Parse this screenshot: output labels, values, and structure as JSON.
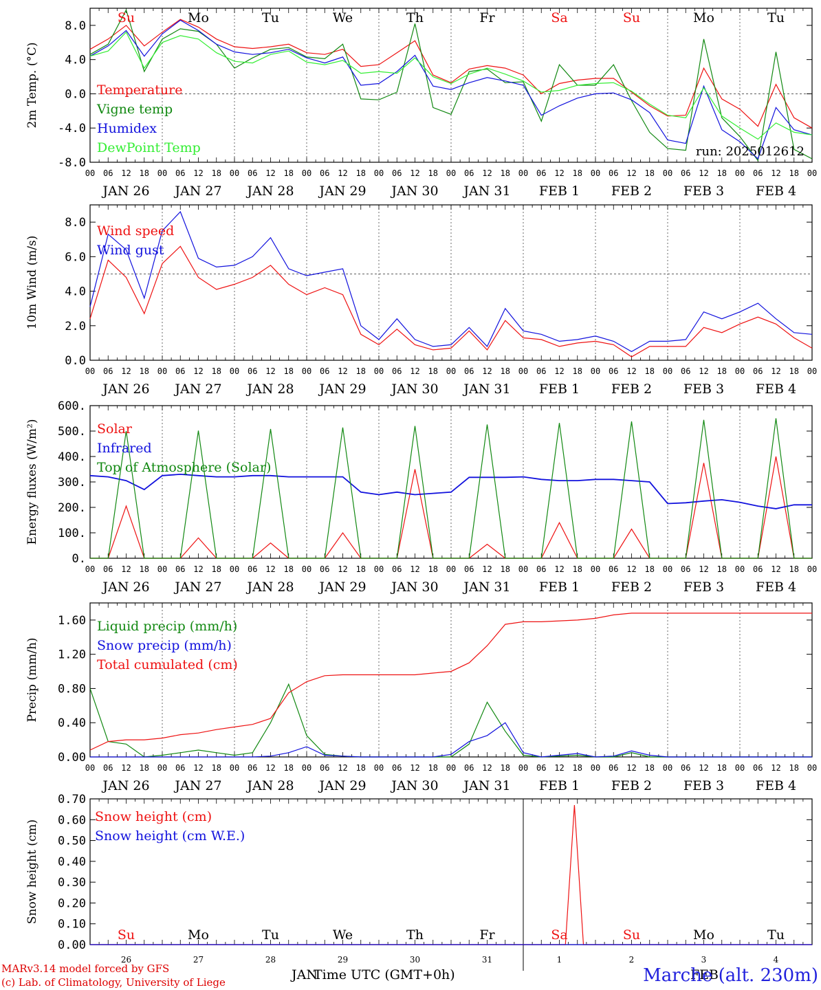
{
  "colors": {
    "red": "#ee1111",
    "darkgreen": "#118811",
    "blue": "#1111dd",
    "lightgreen": "#33ee33",
    "black": "#000000"
  },
  "days": [
    "JAN 26",
    "JAN 27",
    "JAN 28",
    "JAN 29",
    "JAN 30",
    "JAN 31",
    "FEB  1",
    "FEB  2",
    "FEB  3",
    "FEB  4"
  ],
  "dow": [
    {
      "label": "Su",
      "color": "red"
    },
    {
      "label": "Mo",
      "color": "black"
    },
    {
      "label": "Tu",
      "color": "black"
    },
    {
      "label": "We",
      "color": "black"
    },
    {
      "label": "Th",
      "color": "black"
    },
    {
      "label": "Fr",
      "color": "black"
    },
    {
      "label": "Sa",
      "color": "red"
    },
    {
      "label": "Su",
      "color": "red"
    },
    {
      "label": "Mo",
      "color": "black"
    },
    {
      "label": "Tu",
      "color": "black"
    }
  ],
  "hour_labels": [
    "00",
    "06",
    "12",
    "18"
  ],
  "final_hour_label": "00",
  "run_label": "run: 2025012612",
  "chart_data": [
    {
      "type": "line",
      "ylabel": "2m Temp. (°C)",
      "ylim": [
        -8,
        10
      ],
      "yticks": [
        -8,
        -4,
        0,
        4,
        8
      ],
      "yticklabels": [
        "-8.0",
        "-4.0",
        "0.0",
        "4.0",
        "8.0"
      ],
      "reference_line": 0,
      "x_hours": [
        0,
        6,
        12,
        18,
        24,
        30,
        36,
        42,
        48,
        54,
        60,
        66,
        72,
        78,
        84,
        90,
        96,
        102,
        108,
        114,
        120,
        126,
        132,
        138,
        144,
        150,
        156,
        162,
        168,
        174,
        180,
        186,
        192,
        198,
        204,
        210,
        216,
        222,
        228,
        234,
        240
      ],
      "series": [
        {
          "name": "Temperature",
          "color": "red",
          "values": [
            5.2,
            6.4,
            8.0,
            5.6,
            7.2,
            8.7,
            7.8,
            6.4,
            5.5,
            5.3,
            5.5,
            5.8,
            4.8,
            4.6,
            5.2,
            3.2,
            3.4,
            4.8,
            6.2,
            2.2,
            1.3,
            2.9,
            3.3,
            3.0,
            2.2,
            0.0,
            1.2,
            1.6,
            1.8,
            1.8,
            0.2,
            -1.4,
            -2.6,
            -2.5,
            3.0,
            -0.6,
            -1.8,
            -3.8,
            1.1,
            -2.8,
            -4.0
          ]
        },
        {
          "name": "Vigne temp",
          "color": "darkgreen",
          "values": [
            4.6,
            5.8,
            9.8,
            2.6,
            6.4,
            7.6,
            7.3,
            5.8,
            3.0,
            4.2,
            5.2,
            5.4,
            4.3,
            4.1,
            5.8,
            -0.6,
            -0.7,
            0.2,
            8.2,
            -1.6,
            -2.4,
            2.6,
            2.9,
            1.3,
            1.4,
            -3.2,
            3.4,
            1.0,
            1.0,
            3.4,
            -0.8,
            -4.5,
            -6.4,
            -6.6,
            6.4,
            -2.8,
            -5.0,
            -7.8,
            4.9,
            -6.5,
            -7.6
          ]
        },
        {
          "name": "Humidex",
          "color": "blue",
          "values": [
            4.4,
            5.6,
            7.4,
            4.4,
            7.0,
            8.6,
            7.4,
            5.8,
            4.9,
            4.6,
            4.8,
            5.2,
            4.2,
            3.6,
            4.3,
            1.0,
            1.2,
            2.6,
            4.5,
            0.9,
            0.5,
            1.3,
            1.9,
            1.5,
            1.0,
            -2.5,
            -1.4,
            -0.5,
            0.0,
            0.1,
            -0.7,
            -2.2,
            -5.4,
            -5.8,
            0.9,
            -4.2,
            -5.6,
            -7.6,
            -1.6,
            -4.2,
            -4.8
          ]
        },
        {
          "name": "DewPoint Temp",
          "color": "lightgreen",
          "values": [
            4.4,
            5.0,
            7.2,
            3.0,
            6.0,
            6.8,
            6.4,
            4.8,
            3.8,
            3.6,
            4.6,
            5.0,
            3.7,
            3.4,
            3.9,
            2.4,
            2.6,
            2.4,
            4.2,
            2.0,
            1.2,
            2.3,
            3.0,
            2.3,
            1.5,
            0.2,
            0.4,
            1.0,
            1.2,
            1.3,
            0.3,
            -1.2,
            -2.5,
            -2.8,
            0.7,
            -2.6,
            -4.0,
            -5.3,
            -3.4,
            -4.5,
            -4.8
          ]
        }
      ]
    },
    {
      "type": "line",
      "ylabel": "10m Wind (m/s)",
      "ylim": [
        0,
        9
      ],
      "yticks": [
        0,
        2,
        4,
        6,
        8
      ],
      "yticklabels": [
        "0.0",
        "2.0",
        "4.0",
        "6.0",
        "8.0"
      ],
      "reference_line": 5,
      "x_hours": [
        0,
        6,
        12,
        18,
        24,
        30,
        36,
        42,
        48,
        54,
        60,
        66,
        72,
        78,
        84,
        90,
        96,
        102,
        108,
        114,
        120,
        126,
        132,
        138,
        144,
        150,
        156,
        162,
        168,
        174,
        180,
        186,
        192,
        198,
        204,
        210,
        216,
        222,
        228,
        234,
        240
      ],
      "series": [
        {
          "name": "Wind speed",
          "color": "red",
          "values": [
            2.4,
            5.8,
            4.8,
            2.7,
            5.6,
            6.6,
            4.8,
            4.1,
            4.4,
            4.8,
            5.5,
            4.4,
            3.8,
            4.2,
            3.8,
            1.5,
            0.9,
            1.8,
            0.9,
            0.6,
            0.7,
            1.7,
            0.6,
            2.3,
            1.3,
            1.2,
            0.8,
            1.0,
            1.1,
            0.9,
            0.2,
            0.8,
            0.8,
            0.8,
            1.9,
            1.6,
            2.1,
            2.5,
            2.1,
            1.3,
            0.7
          ]
        },
        {
          "name": "Wind gust",
          "color": "blue",
          "values": [
            3.1,
            7.3,
            6.4,
            3.6,
            7.5,
            8.6,
            5.9,
            5.4,
            5.5,
            6.0,
            7.1,
            5.3,
            4.9,
            5.1,
            5.3,
            2.0,
            1.2,
            2.4,
            1.2,
            0.8,
            0.9,
            1.9,
            0.8,
            3.0,
            1.7,
            1.5,
            1.1,
            1.2,
            1.4,
            1.1,
            0.5,
            1.1,
            1.1,
            1.2,
            2.8,
            2.4,
            2.8,
            3.3,
            2.4,
            1.6,
            1.5
          ]
        }
      ]
    },
    {
      "type": "line",
      "ylabel": "Energy fluxes (W/m²)",
      "ylim": [
        0,
        600
      ],
      "yticks": [
        0,
        100,
        200,
        300,
        400,
        500,
        600
      ],
      "yticklabels": [
        "0.",
        "100.",
        "200.",
        "300.",
        "400.",
        "500.",
        "600."
      ],
      "x_hours": [
        0,
        6,
        12,
        18,
        24,
        30,
        36,
        42,
        48,
        54,
        60,
        66,
        72,
        78,
        84,
        90,
        96,
        102,
        108,
        114,
        120,
        126,
        132,
        138,
        144,
        150,
        156,
        162,
        168,
        174,
        180,
        186,
        192,
        198,
        204,
        210,
        216,
        222,
        228,
        234,
        240
      ],
      "series": [
        {
          "name": "Solar",
          "color": "red",
          "values": [
            0,
            0,
            205,
            0,
            0,
            0,
            80,
            0,
            0,
            0,
            60,
            0,
            0,
            0,
            100,
            0,
            0,
            0,
            350,
            0,
            0,
            0,
            55,
            0,
            0,
            0,
            140,
            0,
            0,
            0,
            115,
            0,
            0,
            0,
            375,
            0,
            0,
            0,
            400,
            0,
            0
          ]
        },
        {
          "name": "Infrared",
          "color": "blue",
          "values": [
            325,
            320,
            305,
            270,
            325,
            330,
            325,
            320,
            320,
            325,
            325,
            320,
            320,
            320,
            320,
            260,
            250,
            260,
            250,
            255,
            260,
            318,
            318,
            318,
            320,
            310,
            305,
            305,
            310,
            310,
            305,
            300,
            215,
            218,
            225,
            230,
            220,
            205,
            195,
            210,
            210
          ]
        },
        {
          "name": "Top of Atmosphere (Solar)",
          "color": "darkgreen",
          "values": [
            0,
            0,
            500,
            0,
            0,
            0,
            502,
            0,
            0,
            0,
            508,
            0,
            0,
            0,
            514,
            0,
            0,
            0,
            520,
            0,
            0,
            0,
            526,
            0,
            0,
            0,
            532,
            0,
            0,
            0,
            538,
            0,
            0,
            0,
            544,
            0,
            0,
            0,
            550,
            0,
            0
          ]
        }
      ]
    },
    {
      "type": "line",
      "ylabel": "Precip (mm/h)",
      "ylim": [
        0,
        1.8
      ],
      "yticks": [
        0,
        0.4,
        0.8,
        1.2,
        1.6
      ],
      "yticklabels": [
        "0.00",
        "0.40",
        "0.80",
        "1.20",
        "1.60"
      ],
      "x_hours": [
        0,
        6,
        12,
        18,
        24,
        30,
        36,
        42,
        48,
        54,
        60,
        66,
        72,
        78,
        84,
        90,
        96,
        102,
        108,
        114,
        120,
        126,
        132,
        138,
        144,
        150,
        156,
        162,
        168,
        174,
        180,
        186,
        192,
        198,
        204,
        210,
        216,
        222,
        228,
        234,
        240
      ],
      "series": [
        {
          "name": "Liquid precip (mm/h)",
          "color": "darkgreen",
          "values": [
            0.8,
            0.18,
            0.15,
            0.0,
            0.02,
            0.05,
            0.08,
            0.05,
            0.02,
            0.05,
            0.4,
            0.85,
            0.25,
            0.03,
            0.01,
            0.0,
            0.0,
            0.0,
            0.0,
            0.0,
            0.0,
            0.15,
            0.64,
            0.3,
            0.02,
            0.0,
            0.01,
            0.02,
            0.0,
            0.0,
            0.05,
            0.0,
            0.0,
            0.0,
            0.0,
            0.0,
            0.0,
            0.0,
            0.0,
            0.0,
            0.0
          ]
        },
        {
          "name": "Snow precip (mm/h)",
          "color": "blue",
          "values": [
            0.0,
            0.0,
            0.0,
            0.0,
            0.0,
            0.0,
            0.0,
            0.0,
            0.0,
            0.0,
            0.01,
            0.05,
            0.12,
            0.02,
            0.01,
            0.0,
            0.0,
            0.0,
            0.0,
            0.0,
            0.03,
            0.18,
            0.25,
            0.4,
            0.05,
            0.0,
            0.02,
            0.04,
            0.0,
            0.01,
            0.07,
            0.02,
            0.0,
            0.0,
            0.0,
            0.0,
            0.0,
            0.0,
            0.0,
            0.0,
            0.0
          ]
        },
        {
          "name": "Total cumulated (cm)",
          "color": "red",
          "values": [
            0.08,
            0.18,
            0.2,
            0.2,
            0.22,
            0.26,
            0.28,
            0.32,
            0.35,
            0.38,
            0.45,
            0.75,
            0.88,
            0.95,
            0.96,
            0.96,
            0.96,
            0.96,
            0.96,
            0.98,
            1.0,
            1.1,
            1.3,
            1.55,
            1.58,
            1.58,
            1.59,
            1.6,
            1.62,
            1.66,
            1.68,
            1.68,
            1.68,
            1.68,
            1.68,
            1.68,
            1.68,
            1.68,
            1.68,
            1.68,
            1.68
          ]
        }
      ]
    },
    {
      "type": "line",
      "ylabel": "Snow height (cm)",
      "ylim": [
        0,
        0.7
      ],
      "yticks": [
        0,
        0.1,
        0.2,
        0.3,
        0.4,
        0.5,
        0.6,
        0.7
      ],
      "yticklabels": [
        "0.00",
        "0.10",
        "0.20",
        "0.30",
        "0.40",
        "0.50",
        "0.60",
        "0.70"
      ],
      "date_numbers": [
        "26",
        "27",
        "28",
        "29",
        "30",
        "31",
        "1",
        "2",
        "3",
        "4"
      ],
      "x_hours": [
        0,
        150,
        158,
        161,
        164,
        240
      ],
      "series": [
        {
          "name": "Snow height (cm)",
          "color": "red",
          "values": [
            0,
            0,
            0,
            0.67,
            0,
            0
          ]
        },
        {
          "name": "Snow height (cm W.E.)",
          "color": "blue",
          "values": [
            0,
            0,
            0,
            0,
            0,
            0
          ]
        }
      ]
    }
  ],
  "footer": {
    "credit1": "MARv3.14 model forced by GFS",
    "credit2": "(c) Lab. of Climatology, University of Liege",
    "month_jan": "JAN",
    "month_feb": "FEB",
    "xlabel": "Time UTC (GMT+0h)",
    "station": "Marche (alt. 230m)"
  }
}
